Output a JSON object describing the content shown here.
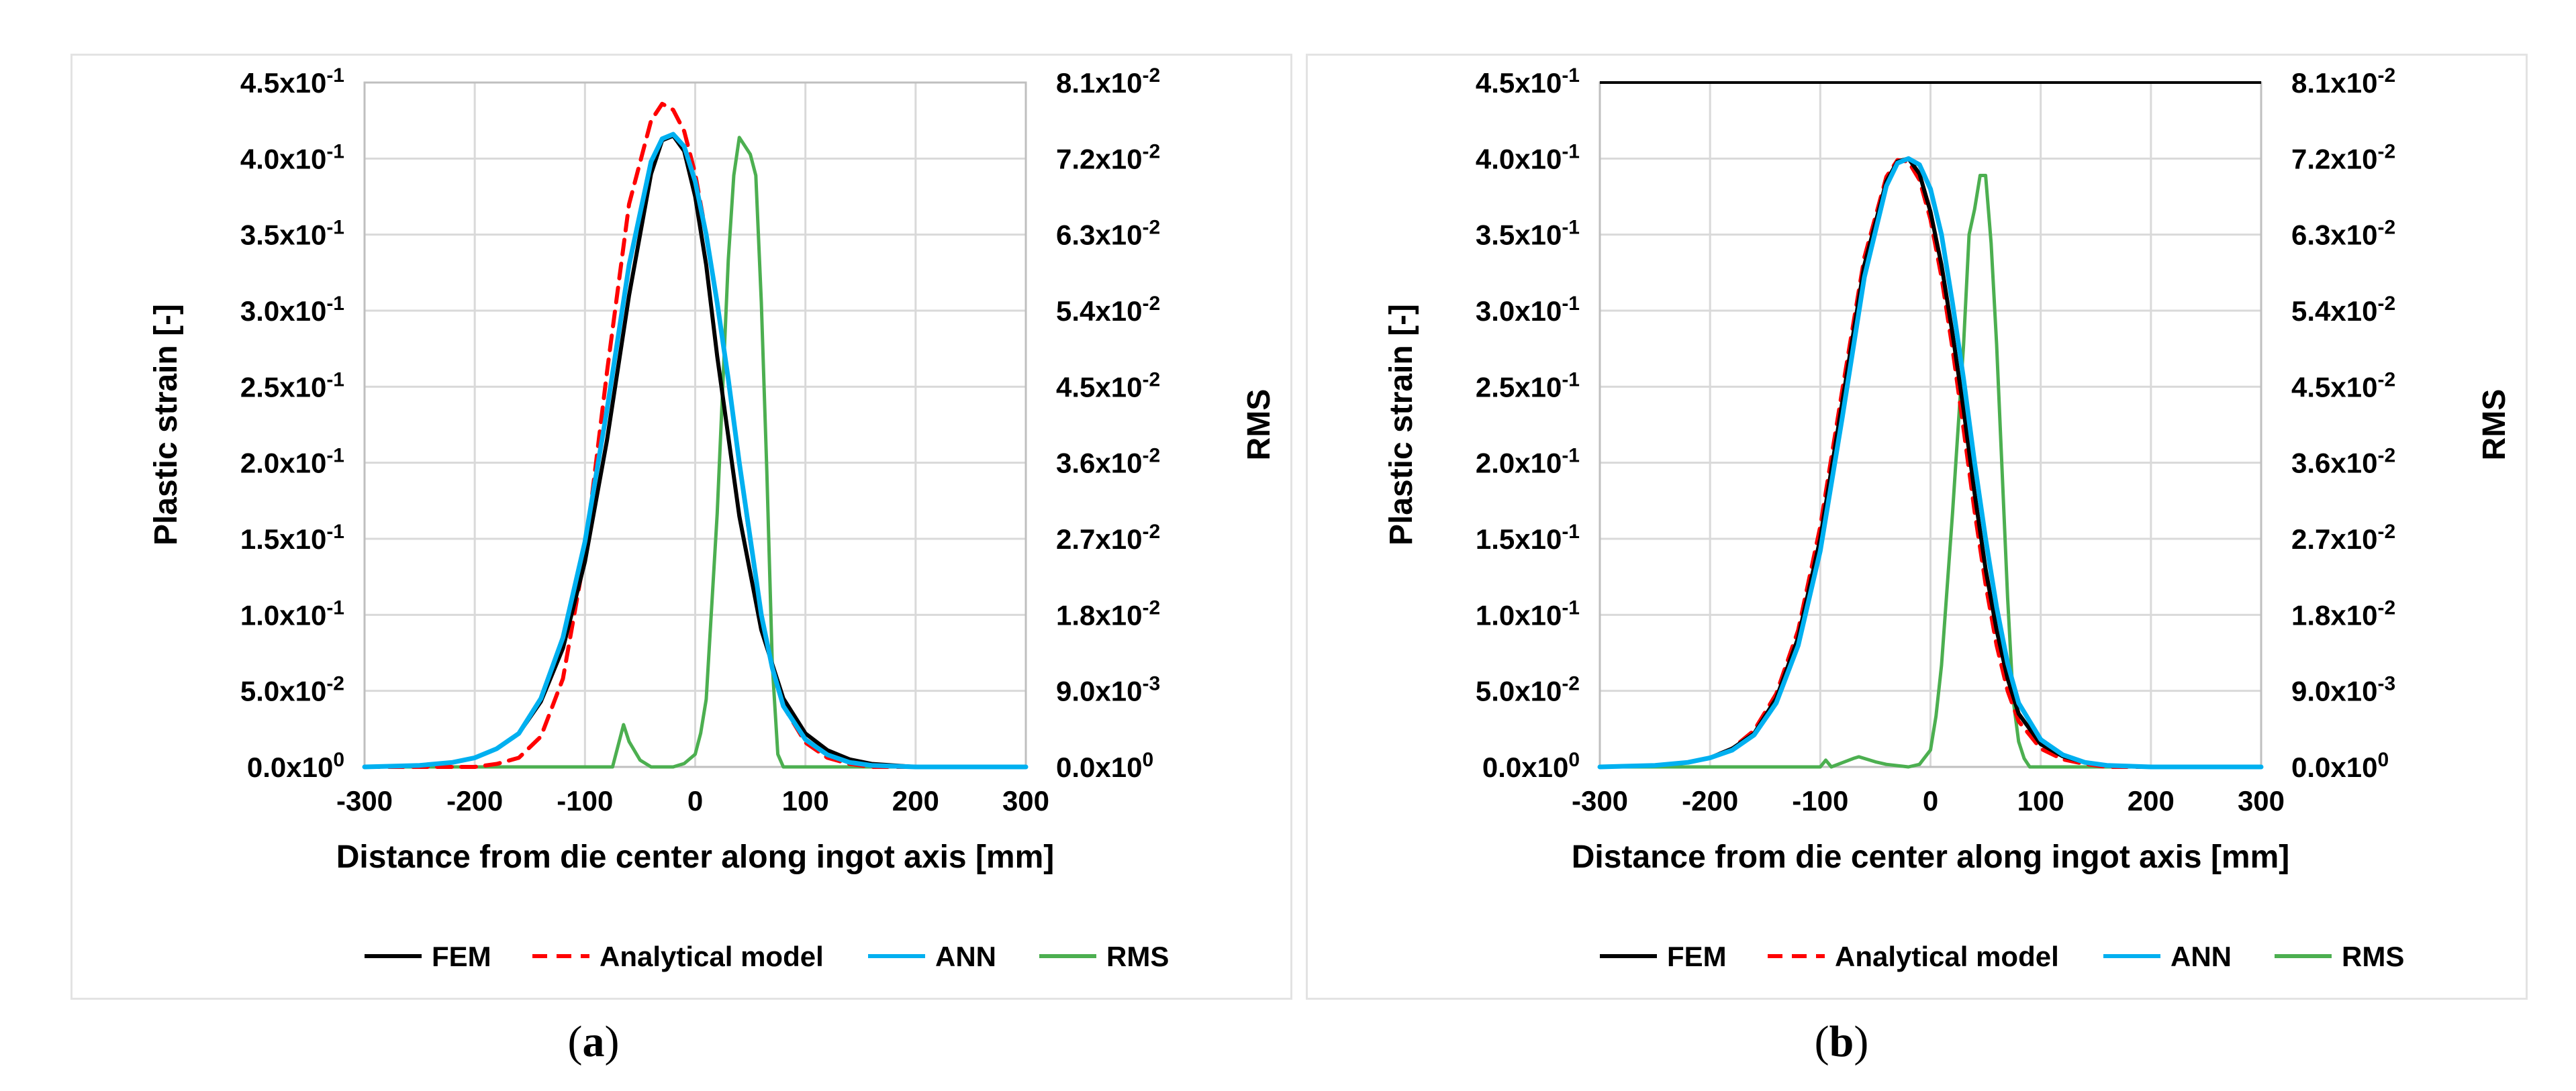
{
  "captions": [
    {
      "open": "(",
      "letter": "a",
      "close": ")"
    },
    {
      "open": "(",
      "letter": "b",
      "close": ")"
    }
  ],
  "colors": {
    "fem": "#000000",
    "analytical": "#ff0000",
    "ann": "#00b0f0",
    "rms": "#4caf50",
    "grid": "#d9d9d9"
  },
  "chart_data": [
    {
      "type": "line",
      "panel": "a",
      "xlabel": "Distance from die center along ingot axis [mm]",
      "ylabel": "Plastic strain [-]",
      "y2label": "RMS",
      "xlim": [
        -300,
        300
      ],
      "ylim": [
        0,
        0.45
      ],
      "y2lim": [
        0,
        0.081
      ],
      "xticks": [
        "-300",
        "-200",
        "-100",
        "0",
        "100",
        "200",
        "300"
      ],
      "yticks": [
        {
          "m": "0.0x10",
          "e": "0"
        },
        {
          "m": "5.0x10",
          "e": "-2"
        },
        {
          "m": "1.0x10",
          "e": "-1"
        },
        {
          "m": "1.5x10",
          "e": "-1"
        },
        {
          "m": "2.0x10",
          "e": "-1"
        },
        {
          "m": "2.5x10",
          "e": "-1"
        },
        {
          "m": "3.0x10",
          "e": "-1"
        },
        {
          "m": "3.5x10",
          "e": "-1"
        },
        {
          "m": "4.0x10",
          "e": "-1"
        },
        {
          "m": "4.5x10",
          "e": "-1"
        }
      ],
      "y2ticks": [
        {
          "m": "0.0x10",
          "e": "0"
        },
        {
          "m": "9.0x10",
          "e": "-3"
        },
        {
          "m": "1.8x10",
          "e": "-2"
        },
        {
          "m": "2.7x10",
          "e": "-2"
        },
        {
          "m": "3.6x10",
          "e": "-2"
        },
        {
          "m": "4.5x10",
          "e": "-2"
        },
        {
          "m": "5.4x10",
          "e": "-2"
        },
        {
          "m": "6.3x10",
          "e": "-2"
        },
        {
          "m": "7.2x10",
          "e": "-2"
        },
        {
          "m": "8.1x10",
          "e": "-2"
        }
      ],
      "legend": [
        "FEM",
        "Analytical model",
        "ANN",
        "RMS"
      ],
      "series": [
        {
          "name": "FEM",
          "axis": "left",
          "x": [
            -300,
            -250,
            -220,
            -200,
            -180,
            -160,
            -140,
            -120,
            -100,
            -80,
            -60,
            -40,
            -30,
            -20,
            -10,
            0,
            10,
            20,
            40,
            60,
            80,
            100,
            120,
            140,
            160,
            200,
            250,
            300
          ],
          "y": [
            0,
            0.001,
            0.003,
            0.006,
            0.012,
            0.022,
            0.043,
            0.078,
            0.135,
            0.215,
            0.31,
            0.39,
            0.412,
            0.415,
            0.405,
            0.375,
            0.33,
            0.27,
            0.165,
            0.09,
            0.045,
            0.022,
            0.011,
            0.005,
            0.002,
            0,
            0,
            0
          ]
        },
        {
          "name": "Analytical model",
          "axis": "left",
          "x": [
            -300,
            -200,
            -180,
            -160,
            -140,
            -120,
            -100,
            -80,
            -60,
            -40,
            -30,
            -20,
            -10,
            0,
            10,
            20,
            30,
            40,
            50,
            60,
            70,
            80,
            100,
            120,
            140,
            160,
            200,
            300
          ],
          "y": [
            0,
            0,
            0.002,
            0.006,
            0.02,
            0.058,
            0.14,
            0.26,
            0.37,
            0.425,
            0.436,
            0.432,
            0.418,
            0.39,
            0.35,
            0.305,
            0.255,
            0.2,
            0.148,
            0.1,
            0.065,
            0.04,
            0.016,
            0.006,
            0.002,
            0,
            0,
            0
          ]
        },
        {
          "name": "ANN",
          "axis": "left",
          "x": [
            -300,
            -250,
            -220,
            -200,
            -180,
            -160,
            -140,
            -120,
            -100,
            -80,
            -60,
            -40,
            -30,
            -20,
            -10,
            0,
            10,
            20,
            30,
            40,
            50,
            60,
            70,
            80,
            100,
            120,
            140,
            160,
            200,
            300
          ],
          "y": [
            0,
            0.001,
            0.003,
            0.006,
            0.012,
            0.022,
            0.045,
            0.085,
            0.148,
            0.235,
            0.33,
            0.398,
            0.413,
            0.416,
            0.408,
            0.385,
            0.35,
            0.305,
            0.255,
            0.2,
            0.15,
            0.1,
            0.065,
            0.04,
            0.018,
            0.008,
            0.003,
            0.001,
            0,
            0
          ]
        },
        {
          "name": "RMS",
          "axis": "right",
          "x": [
            -300,
            -75,
            -70,
            -65,
            -60,
            -50,
            -40,
            -20,
            -10,
            0,
            5,
            10,
            20,
            30,
            35,
            40,
            45,
            50,
            55,
            60,
            65,
            70,
            75,
            80,
            300
          ],
          "y": [
            0,
            0,
            0.0025,
            0.005,
            0.003,
            0.0008,
            0,
            0,
            0.0004,
            0.0015,
            0.004,
            0.008,
            0.03,
            0.06,
            0.07,
            0.0745,
            0.0735,
            0.0725,
            0.07,
            0.055,
            0.035,
            0.012,
            0.0015,
            0,
            0
          ]
        }
      ]
    },
    {
      "type": "line",
      "panel": "b",
      "xlabel": "Distance from die center along ingot axis [mm]",
      "ylabel": "Plastic strain [-]",
      "y2label": "RMS",
      "xlim": [
        -300,
        300
      ],
      "ylim": [
        0,
        0.45
      ],
      "y2lim": [
        0,
        0.081
      ],
      "xticks": [
        "-300",
        "-200",
        "-100",
        "0",
        "100",
        "200",
        "300"
      ],
      "yticks": [
        {
          "m": "0.0x10",
          "e": "0"
        },
        {
          "m": "5.0x10",
          "e": "-2"
        },
        {
          "m": "1.0x10",
          "e": "-1"
        },
        {
          "m": "1.5x10",
          "e": "-1"
        },
        {
          "m": "2.0x10",
          "e": "-1"
        },
        {
          "m": "2.5x10",
          "e": "-1"
        },
        {
          "m": "3.0x10",
          "e": "-1"
        },
        {
          "m": "3.5x10",
          "e": "-1"
        },
        {
          "m": "4.0x10",
          "e": "-1"
        },
        {
          "m": "4.5x10",
          "e": "-1"
        }
      ],
      "y2ticks": [
        {
          "m": "0.0x10",
          "e": "0"
        },
        {
          "m": "9.0x10",
          "e": "-3"
        },
        {
          "m": "1.8x10",
          "e": "-2"
        },
        {
          "m": "2.7x10",
          "e": "-2"
        },
        {
          "m": "3.6x10",
          "e": "-2"
        },
        {
          "m": "4.5x10",
          "e": "-2"
        },
        {
          "m": "5.4x10",
          "e": "-2"
        },
        {
          "m": "6.3x10",
          "e": "-2"
        },
        {
          "m": "7.2x10",
          "e": "-2"
        },
        {
          "m": "8.1x10",
          "e": "-2"
        }
      ],
      "legend": [
        "FEM",
        "Analytical model",
        "ANN",
        "RMS"
      ],
      "series": [
        {
          "name": "FEM",
          "axis": "left",
          "x": [
            -300,
            -250,
            -220,
            -200,
            -180,
            -160,
            -140,
            -120,
            -100,
            -80,
            -60,
            -40,
            -30,
            -20,
            -10,
            0,
            10,
            20,
            30,
            40,
            50,
            60,
            70,
            80,
            100,
            120,
            140,
            160,
            200,
            250,
            300
          ],
          "y": [
            0,
            0.001,
            0.003,
            0.006,
            0.012,
            0.022,
            0.045,
            0.085,
            0.15,
            0.24,
            0.33,
            0.385,
            0.398,
            0.4,
            0.39,
            0.365,
            0.33,
            0.285,
            0.235,
            0.18,
            0.13,
            0.09,
            0.058,
            0.035,
            0.015,
            0.007,
            0.003,
            0.001,
            0,
            0,
            0
          ]
        },
        {
          "name": "Analytical model",
          "axis": "left",
          "x": [
            -300,
            -250,
            -220,
            -200,
            -180,
            -160,
            -140,
            -120,
            -100,
            -80,
            -60,
            -40,
            -30,
            -20,
            -10,
            0,
            10,
            20,
            30,
            40,
            50,
            60,
            70,
            80,
            100,
            120,
            140,
            160,
            200,
            300
          ],
          "y": [
            0,
            0.001,
            0.003,
            0.006,
            0.012,
            0.024,
            0.048,
            0.09,
            0.158,
            0.248,
            0.335,
            0.388,
            0.399,
            0.398,
            0.386,
            0.36,
            0.322,
            0.275,
            0.222,
            0.168,
            0.12,
            0.08,
            0.05,
            0.03,
            0.012,
            0.005,
            0.002,
            0,
            0,
            0
          ]
        },
        {
          "name": "ANN",
          "axis": "left",
          "x": [
            -300,
            -250,
            -220,
            -200,
            -180,
            -160,
            -140,
            -120,
            -100,
            -80,
            -60,
            -40,
            -30,
            -20,
            -10,
            0,
            10,
            20,
            30,
            40,
            50,
            60,
            70,
            80,
            100,
            120,
            140,
            160,
            200,
            300
          ],
          "y": [
            0,
            0.001,
            0.003,
            0.006,
            0.011,
            0.021,
            0.042,
            0.08,
            0.142,
            0.23,
            0.322,
            0.382,
            0.397,
            0.4,
            0.396,
            0.38,
            0.35,
            0.305,
            0.255,
            0.2,
            0.15,
            0.105,
            0.068,
            0.042,
            0.018,
            0.008,
            0.003,
            0.001,
            0,
            0
          ]
        },
        {
          "name": "RMS",
          "axis": "right",
          "x": [
            -300,
            -100,
            -95,
            -90,
            -80,
            -70,
            -65,
            -60,
            -50,
            -40,
            -20,
            -10,
            0,
            5,
            10,
            20,
            30,
            35,
            40,
            45,
            50,
            55,
            60,
            65,
            70,
            75,
            80,
            85,
            90,
            300
          ],
          "y": [
            0,
            0,
            0.0008,
            0,
            0.0005,
            0.001,
            0.0012,
            0.001,
            0.0006,
            0.0003,
            0,
            0.0003,
            0.002,
            0.006,
            0.012,
            0.03,
            0.05,
            0.063,
            0.066,
            0.07,
            0.07,
            0.062,
            0.05,
            0.035,
            0.02,
            0.008,
            0.003,
            0.001,
            0,
            0
          ]
        }
      ]
    }
  ]
}
